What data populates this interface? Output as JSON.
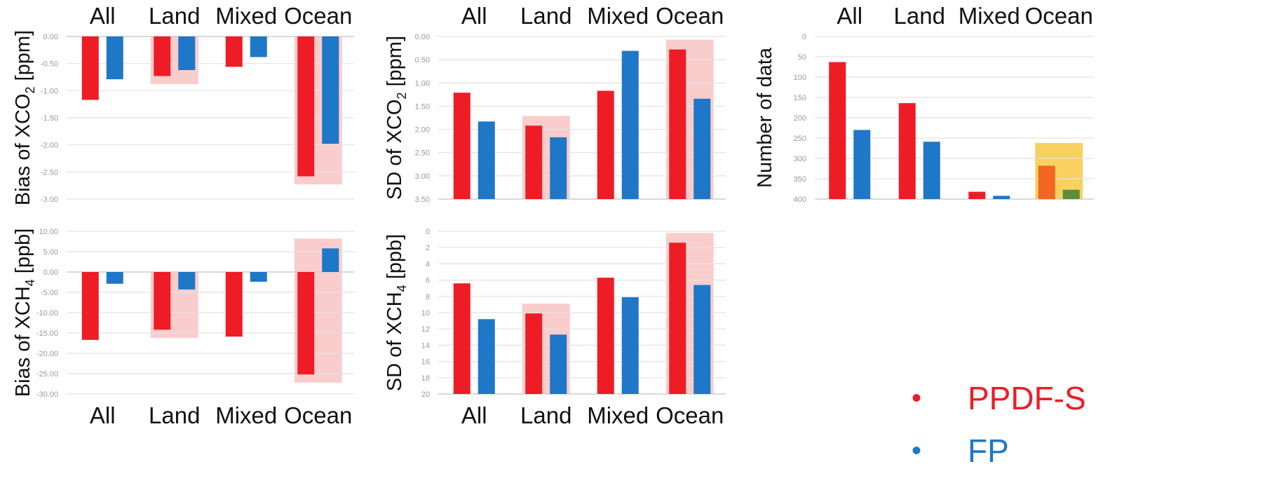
{
  "colors": {
    "ppdf_s": "#ee1c25",
    "fp": "#1f77c7",
    "highlight": "#f9c8c8",
    "highlight_gold": "#f7c944",
    "ocean_ppdf_on_gold": "#f26522",
    "ocean_fp_on_gold": "#5c8f3a",
    "grid": "#e2e2e2",
    "tick_text": "#999999"
  },
  "legend": {
    "items": [
      {
        "bullet": "•",
        "label": "PPDF-S",
        "color": "#ee1c25"
      },
      {
        "bullet": "•",
        "label": "FP",
        "color": "#1f77c7"
      }
    ]
  },
  "chart_data": [
    {
      "id": "bias-xco2",
      "type": "bar",
      "ylabel": "Bias of XCO2 [ppm]",
      "ylabel_base": "Bias of XCO",
      "ylabel_sub": "2",
      "ylabel_tail": " [ppm]",
      "categories": [
        "All",
        "Land",
        "Mixed",
        "Ocean"
      ],
      "series": [
        {
          "name": "PPDF-S",
          "values": [
            -1.17,
            -0.73,
            -0.56,
            -2.58
          ]
        },
        {
          "name": "FP",
          "values": [
            -0.79,
            -0.62,
            -0.38,
            -1.98
          ]
        }
      ],
      "ylim": [
        -3.0,
        0.0
      ],
      "yticks": [
        "0.00",
        "-0.50",
        "-1.00",
        "-1.50",
        "-2.00",
        "-2.50",
        "-3.00"
      ],
      "highlighted": [
        "Land",
        "Ocean"
      ],
      "grid": true
    },
    {
      "id": "sd-xco2",
      "type": "bar",
      "ylabel": "SD of XCO2 [ppm]",
      "ylabel_base": "SD of XCO",
      "ylabel_sub": "2",
      "ylabel_tail": " [ppm]",
      "categories": [
        "All",
        "Land",
        "Mixed",
        "Ocean"
      ],
      "series": [
        {
          "name": "PPDF-S",
          "values": [
            2.29,
            1.58,
            2.33,
            3.22
          ]
        },
        {
          "name": "FP",
          "values": [
            1.67,
            1.33,
            3.19,
            2.16
          ]
        }
      ],
      "ylim": [
        0.0,
        3.5
      ],
      "yticks": [
        "0.00",
        "0.50",
        "1.00",
        "1.50",
        "2.00",
        "2.50",
        "3.00",
        "3.50"
      ],
      "highlighted": [
        "Land",
        "Ocean"
      ],
      "grid": true
    },
    {
      "id": "number-of-data",
      "type": "bar",
      "ylabel": "Number of data",
      "ylabel_base": "Number of data",
      "ylabel_sub": "",
      "ylabel_tail": "",
      "categories": [
        "All",
        "Land",
        "Mixed",
        "Ocean"
      ],
      "series": [
        {
          "name": "PPDF-S",
          "values": [
            337,
            236,
            18,
            82
          ]
        },
        {
          "name": "FP",
          "values": [
            170,
            141,
            8,
            23
          ]
        }
      ],
      "ylim": [
        0,
        400
      ],
      "yticks": [
        "0",
        "50",
        "100",
        "150",
        "200",
        "250",
        "300",
        "350",
        "400"
      ],
      "highlighted": [
        "Ocean"
      ],
      "grid": true
    },
    {
      "id": "bias-xch4",
      "type": "bar",
      "ylabel": "Bias of XCH4 [ppb]",
      "ylabel_base": "Bias of XCH",
      "ylabel_sub": "4",
      "ylabel_tail": " [ppb]",
      "categories": [
        "All",
        "Land",
        "Mixed",
        "Ocean"
      ],
      "series": [
        {
          "name": "PPDF-S",
          "values": [
            -16.7,
            -14.2,
            -15.9,
            -25.2
          ]
        },
        {
          "name": "FP",
          "values": [
            -2.9,
            -4.3,
            -2.4,
            5.8
          ]
        }
      ],
      "ylim": [
        -30,
        10
      ],
      "yticks": [
        "10.00",
        "5.00",
        "0.00",
        "-5.00",
        "-10.00",
        "-15.00",
        "-20.00",
        "-25.00",
        "-30.00"
      ],
      "highlighted": [
        "Land",
        "Ocean"
      ],
      "grid": true
    },
    {
      "id": "sd-xch4",
      "type": "bar",
      "ylabel": "SD of XCH4 [ppb]",
      "ylabel_base": "SD of XCH",
      "ylabel_sub": "4",
      "ylabel_tail": " [ppb]",
      "categories": [
        "All",
        "Land",
        "Mixed",
        "Ocean"
      ],
      "series": [
        {
          "name": "PPDF-S",
          "values": [
            13.6,
            9.9,
            14.3,
            18.6
          ]
        },
        {
          "name": "FP",
          "values": [
            9.2,
            7.3,
            11.9,
            13.4
          ]
        }
      ],
      "ylim": [
        0,
        20
      ],
      "yticks": [
        "0",
        "2",
        "4",
        "6",
        "8",
        "10",
        "12",
        "14",
        "16",
        "18",
        "20"
      ],
      "highlighted": [
        "Land",
        "Ocean"
      ],
      "grid": true
    }
  ]
}
